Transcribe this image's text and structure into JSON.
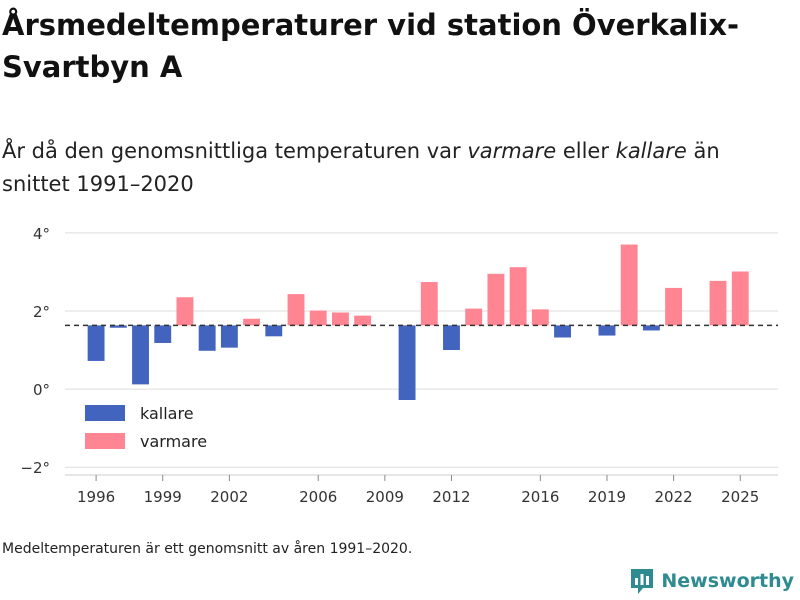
{
  "title": "Årsmedeltemperaturer vid station Överkalix-Svartbyn A",
  "subtitle": {
    "part1": "År då den genomsnittliga temperaturen var ",
    "warm": "varmare",
    "part2": " eller ",
    "cold": "kallare",
    "part3": " än snittet 1991–2020"
  },
  "note": "Medeltemperaturen är ett genomsnitt av åren 1991–2020.",
  "brand": "Newsworthy",
  "colors": {
    "cold": "#4263be",
    "warm": "#ff8593",
    "grid": "#dddddd",
    "baseline": "#333333",
    "axis_text": "#333333",
    "brand": "#2e8b8f"
  },
  "chart_data": {
    "type": "bar",
    "title": "Årsmedeltemperaturer vid station Överkalix-Svartbyn A",
    "xlabel": "",
    "ylabel": "",
    "baseline": 1.63,
    "ylim": [
      -2.2,
      4.2
    ],
    "yticks": [
      -2,
      0,
      2,
      4
    ],
    "ytick_labels": [
      "−2°",
      "0°",
      "2°",
      "4°"
    ],
    "xlim": [
      1994.6,
      2026.7
    ],
    "xticks": [
      1996,
      1999,
      2002,
      2006,
      2009,
      2012,
      2016,
      2019,
      2022,
      2025
    ],
    "legend": [
      {
        "key": "cold",
        "label": "kallare"
      },
      {
        "key": "warm",
        "label": "varmare"
      }
    ],
    "years": [
      1996,
      1997,
      1998,
      1999,
      2000,
      2001,
      2002,
      2003,
      2004,
      2005,
      2006,
      2007,
      2008,
      2009,
      2010,
      2011,
      2012,
      2013,
      2014,
      2015,
      2016,
      2017,
      2018,
      2019,
      2020,
      2021,
      2022,
      2023,
      2024,
      2025
    ],
    "values": [
      0.72,
      1.57,
      0.12,
      1.18,
      2.35,
      0.98,
      1.06,
      1.8,
      1.35,
      2.43,
      2.01,
      1.96,
      1.88,
      1.62,
      -0.28,
      2.74,
      1.0,
      2.06,
      2.95,
      3.12,
      2.04,
      1.32,
      1.63,
      1.37,
      3.7,
      1.5,
      2.59,
      1.63,
      2.77,
      3.01
    ]
  }
}
